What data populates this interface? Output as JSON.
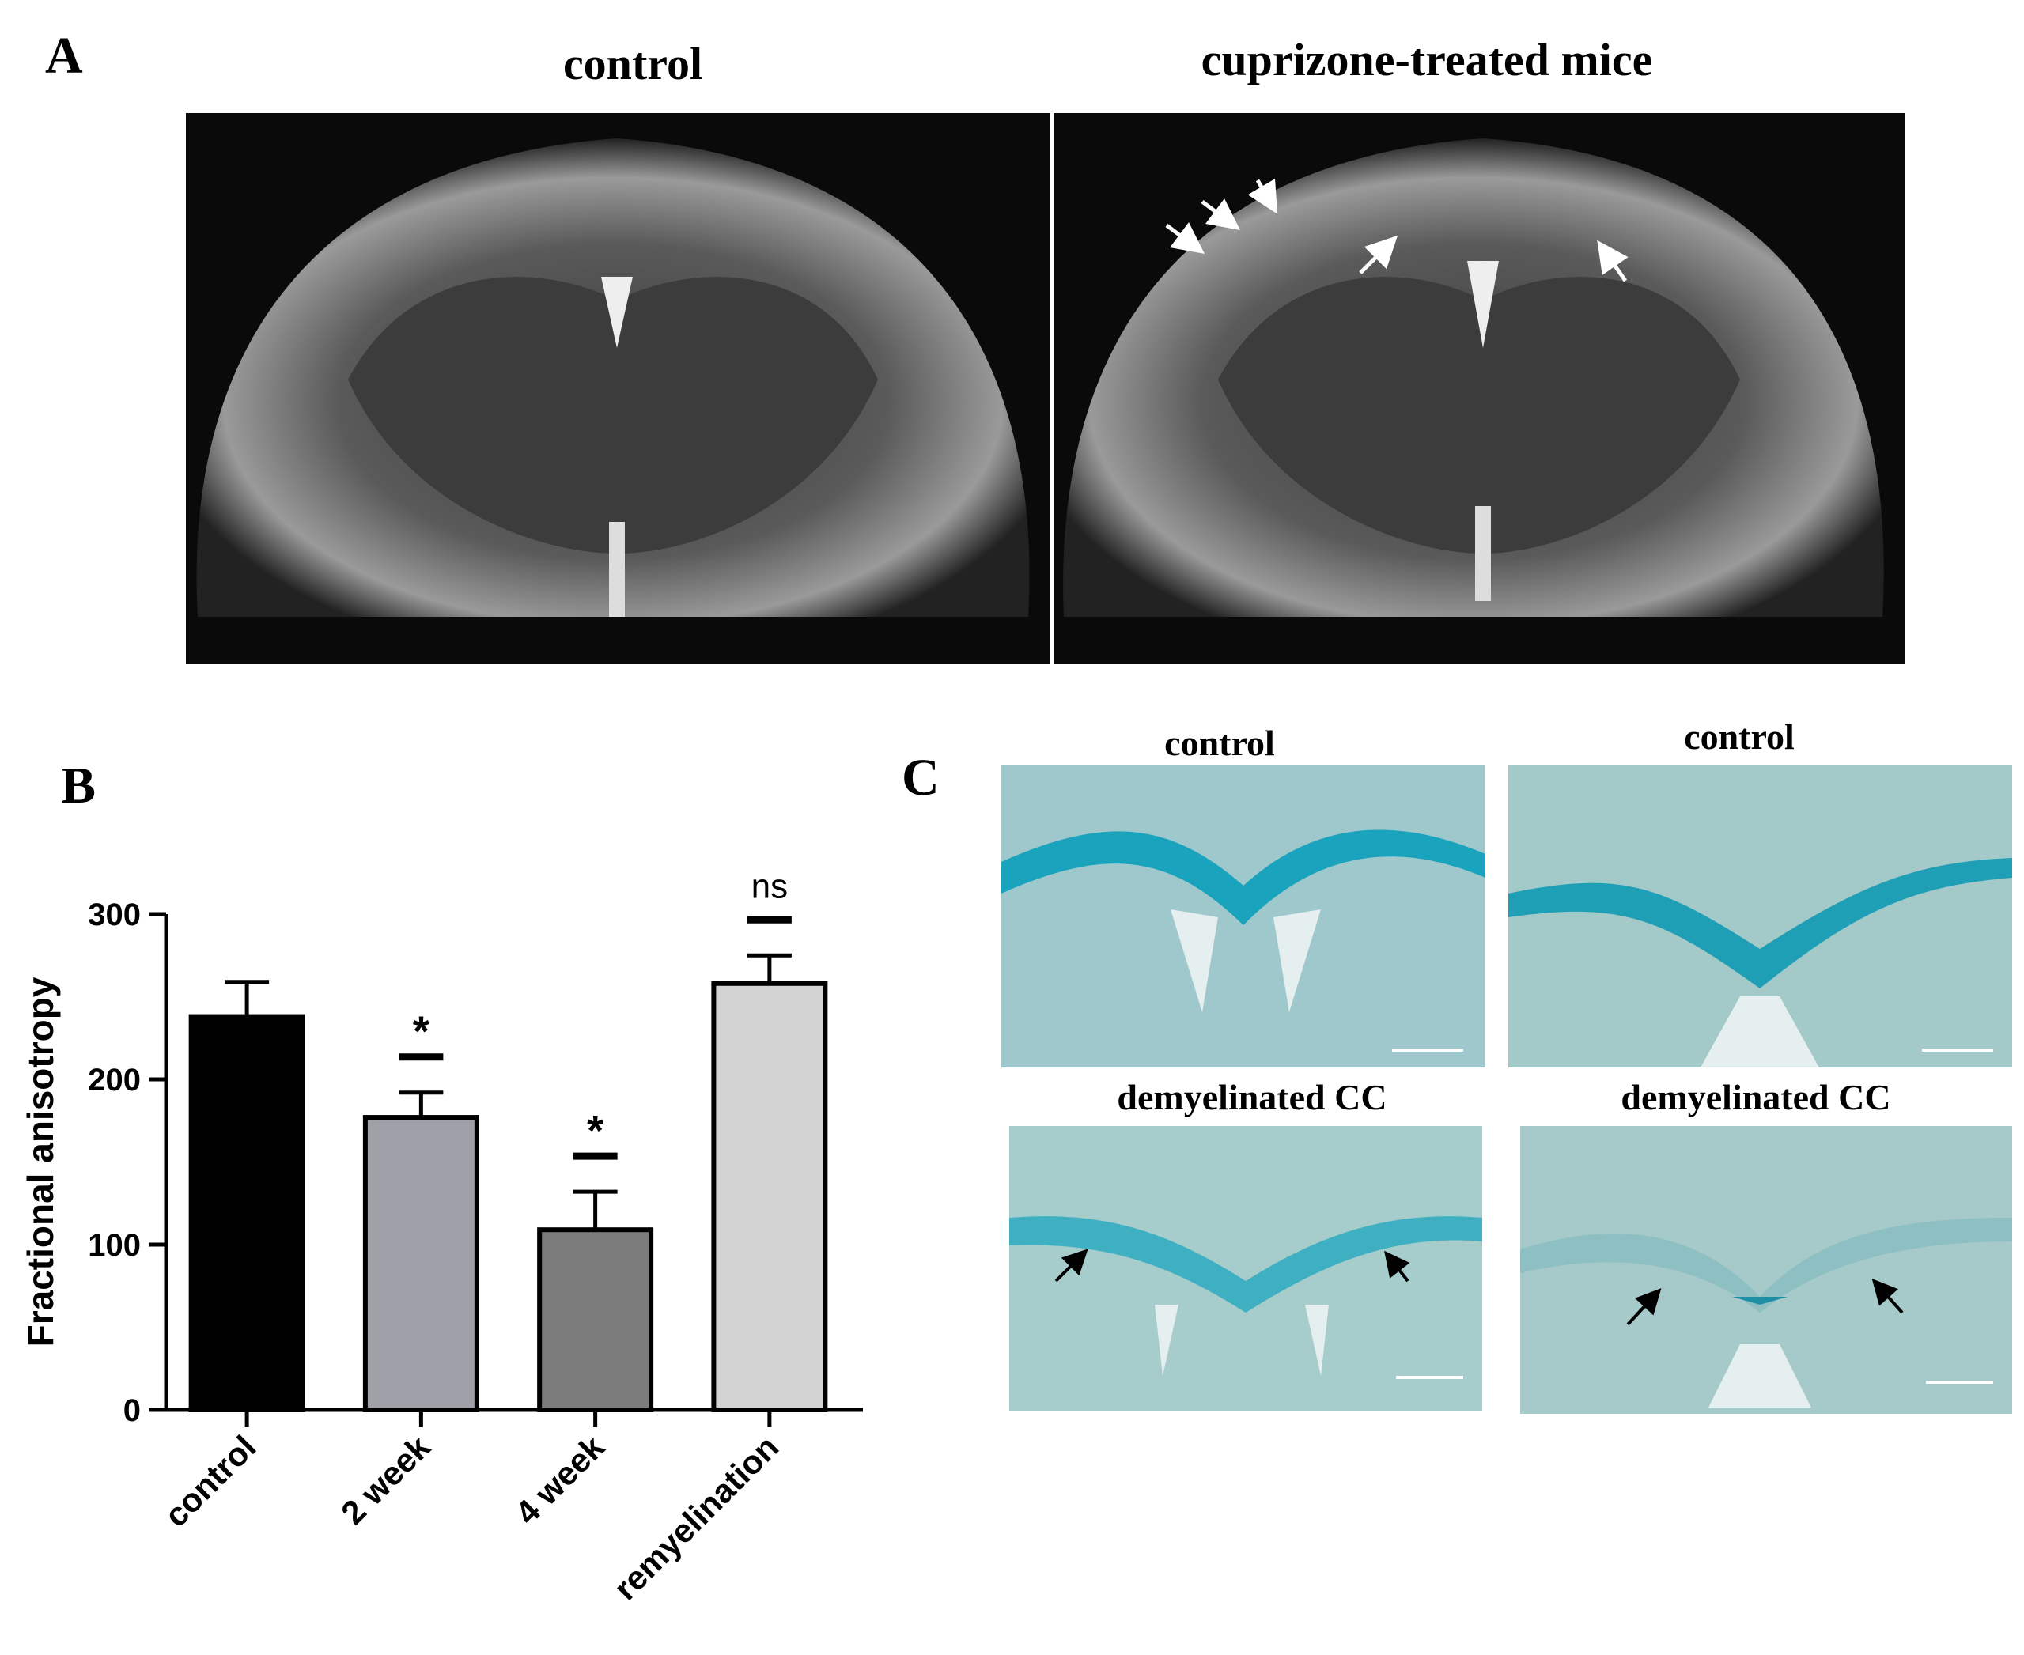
{
  "panels": {
    "a": {
      "letter": "A",
      "left_title": "control",
      "right_title": "cuprizone-treated mice"
    },
    "b": {
      "letter": "B"
    },
    "c": {
      "letter": "C",
      "titles": [
        "control",
        "control",
        "demyelinated CC",
        "demyelinated CC"
      ]
    }
  },
  "chart_data": {
    "type": "bar",
    "y_label": "Fractional anisotropy",
    "categories": [
      "control",
      "2 week",
      "4 week",
      "remyelination"
    ],
    "values": [
      238,
      177,
      109,
      258
    ],
    "errors": [
      21,
      15,
      23,
      17
    ],
    "colors": [
      "#000000",
      "#a0a0a8",
      "#7c7c7c",
      "#d3d3d3"
    ],
    "annotations": [
      null,
      "*",
      "*",
      "ns"
    ],
    "ylim": [
      0,
      300
    ],
    "yticks": [
      0,
      100,
      200,
      300
    ]
  }
}
